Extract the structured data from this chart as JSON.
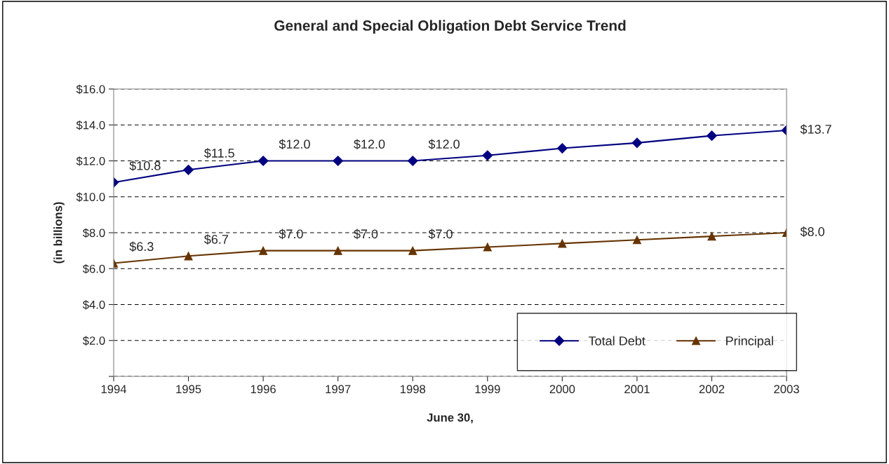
{
  "chart_data": {
    "type": "line",
    "title": "General and Special Obligation Debt Service Trend",
    "xlabel": "June 30,",
    "ylabel": "(in billions)",
    "categories": [
      "1994",
      "1995",
      "1996",
      "1997",
      "1998",
      "1999",
      "2000",
      "2001",
      "2002",
      "2003"
    ],
    "series": [
      {
        "name": "Total Debt",
        "color": "#000080",
        "marker": "diamond",
        "values": [
          10.8,
          11.5,
          12.0,
          12.0,
          12.0,
          12.3,
          12.7,
          13.0,
          13.4,
          13.7
        ],
        "value_labels": [
          "$10.8",
          "$11.5",
          "$12.0",
          "$12.0",
          "$12.0",
          null,
          null,
          null,
          null,
          "$13.7"
        ]
      },
      {
        "name": "Principal",
        "color": "#663300",
        "marker": "triangle",
        "values": [
          6.3,
          6.7,
          7.0,
          7.0,
          7.0,
          7.2,
          7.4,
          7.6,
          7.8,
          8.0
        ],
        "value_labels": [
          "$6.3",
          "$6.7",
          "$7.0",
          "$7.0",
          "$7.0",
          null,
          null,
          null,
          null,
          "$8.0"
        ]
      }
    ],
    "ylim": [
      0,
      16
    ],
    "yticks": [
      {
        "value": 0,
        "label": null
      },
      {
        "value": 2,
        "label": "$2.0"
      },
      {
        "value": 4,
        "label": "$4.0"
      },
      {
        "value": 6,
        "label": "$6.0"
      },
      {
        "value": 8,
        "label": "$8.0"
      },
      {
        "value": 10,
        "label": "$10.0"
      },
      {
        "value": 12,
        "label": "$12.0"
      },
      {
        "value": 14,
        "label": "$14.0"
      },
      {
        "value": 16,
        "label": "$16.0"
      }
    ],
    "grid": "y",
    "legend": "bottom right",
    "line_style": "solid"
  }
}
